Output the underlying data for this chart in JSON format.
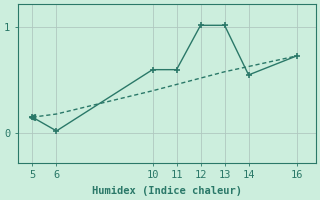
{
  "xlabel": "Humidex (Indice chaleur)",
  "bg_color": "#cceedd",
  "grid_color": "#b0c8c0",
  "line_color": "#2a7868",
  "line1_x": [
    5,
    6,
    10,
    11,
    12,
    13,
    14,
    16
  ],
  "line1_y": [
    0.15,
    0.02,
    0.6,
    0.6,
    1.02,
    1.02,
    0.55,
    0.73
  ],
  "line2_x": [
    5,
    6,
    10,
    11,
    12,
    13,
    14,
    16
  ],
  "line2_y": [
    0.15,
    0.18,
    0.4,
    0.46,
    0.52,
    0.58,
    0.63,
    0.73
  ],
  "xticks": [
    5,
    6,
    10,
    11,
    12,
    13,
    14,
    16
  ],
  "yticks": [
    0,
    1
  ],
  "xlim": [
    4.4,
    16.8
  ],
  "ylim": [
    -0.28,
    1.22
  ]
}
